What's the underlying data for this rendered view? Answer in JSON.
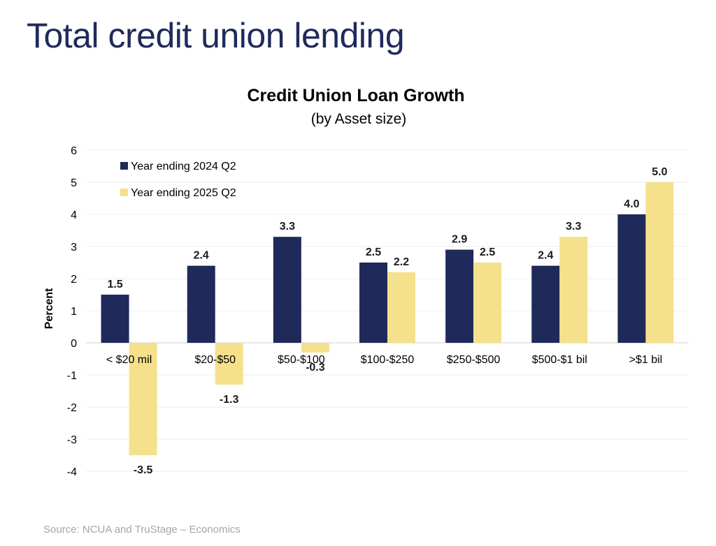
{
  "slide": {
    "title": "Total credit union lending",
    "source": "Source: NCUA and TruStage – Economics"
  },
  "colors": {
    "series_2024": "#1f2a5a",
    "series_2025": "#f5e08c",
    "title": "#1f2a5a"
  },
  "chart_data": {
    "type": "bar",
    "title": "Credit Union Loan Growth",
    "subtitle": "(by Asset size)",
    "xlabel": "",
    "ylabel": "Percent",
    "ylim": [
      -4,
      6
    ],
    "yticks": [
      6,
      5,
      4,
      3,
      2,
      1,
      0,
      -1,
      -2,
      -3,
      -4
    ],
    "grid": true,
    "legend": "top-left",
    "categories": [
      "< $20 mil",
      "$20-$50",
      "$50-$100",
      "$100-$250",
      "$250-$500",
      "$500-$1 bil",
      ">$1 bil"
    ],
    "series": [
      {
        "name": "Year ending 2024 Q2",
        "values": [
          1.5,
          2.4,
          3.3,
          2.5,
          2.9,
          2.4,
          4.0
        ],
        "labels": [
          "1.5",
          "2.4",
          "3.3",
          "2.5",
          "2.9",
          "2.4",
          "4.0"
        ]
      },
      {
        "name": "Year ending 2025 Q2",
        "values": [
          -3.5,
          -1.3,
          -0.3,
          2.2,
          2.5,
          3.3,
          5.0
        ],
        "labels": [
          "-3.5",
          "-1.3",
          "-0.3",
          "2.2",
          "2.5",
          "3.3",
          "5.0"
        ]
      }
    ]
  }
}
